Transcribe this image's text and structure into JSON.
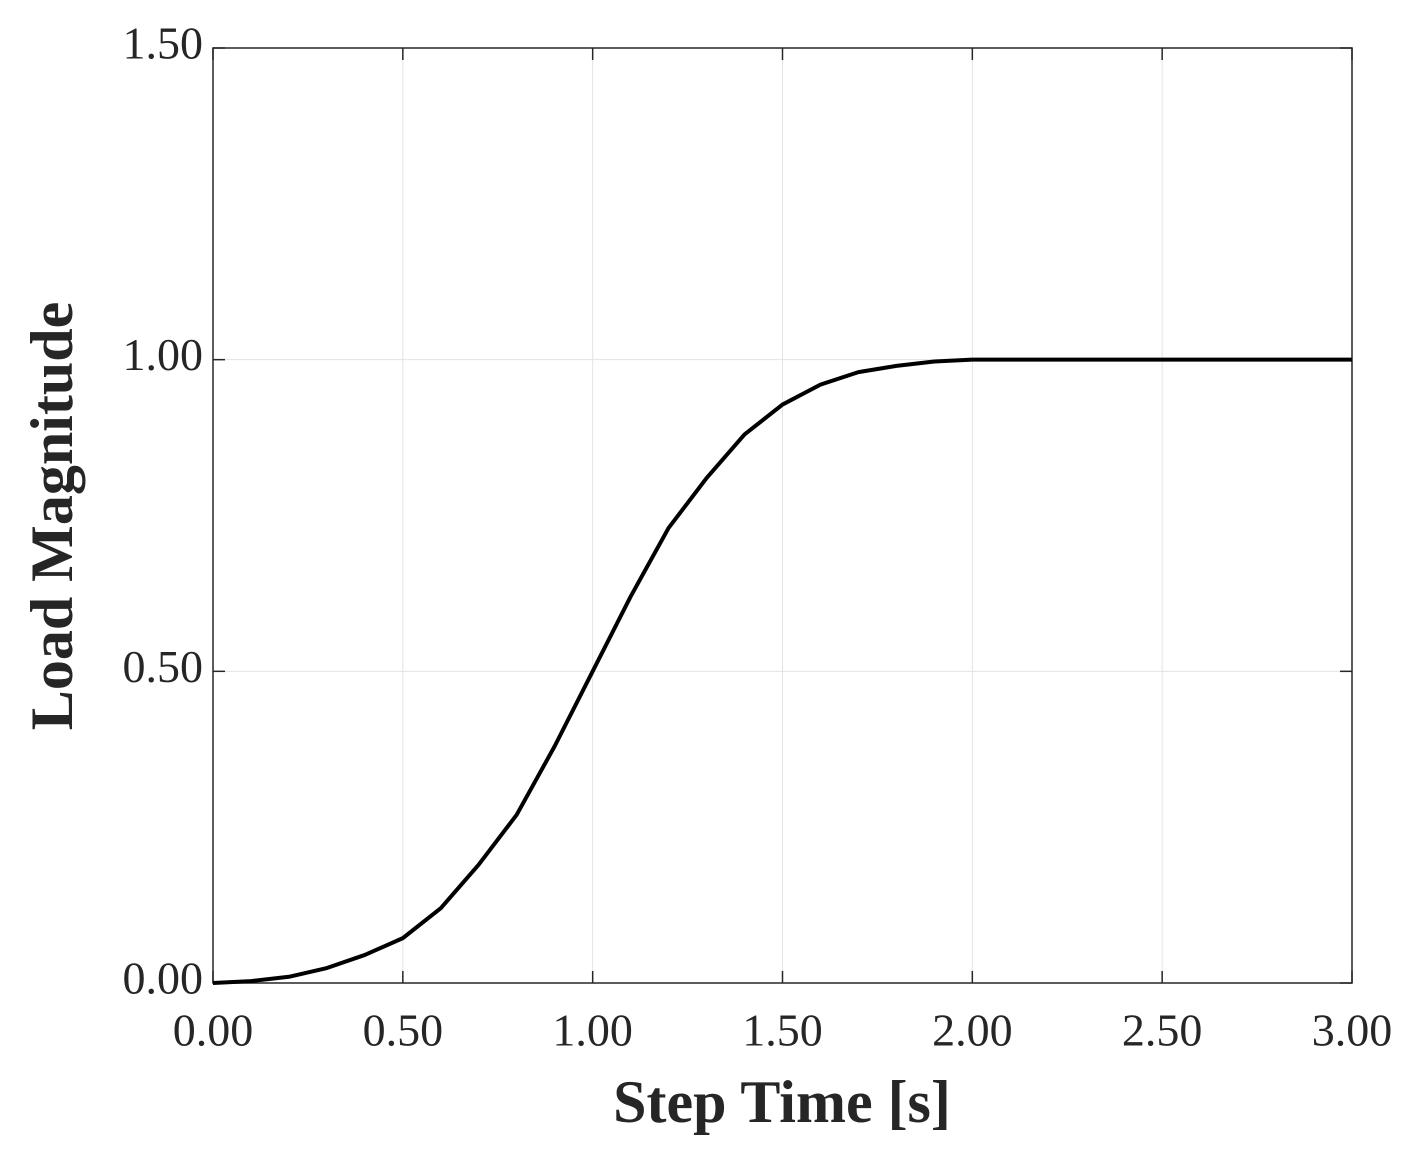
{
  "chart_data": {
    "type": "line",
    "xlabel": "Step Time [s]",
    "ylabel": "Load Magnitude",
    "x": [
      0,
      0.1,
      0.2,
      0.3,
      0.4,
      0.5,
      0.6,
      0.7,
      0.8,
      0.9,
      1.0,
      1.1,
      1.2,
      1.3,
      1.4,
      1.5,
      1.6,
      1.7,
      1.8,
      1.9,
      2.0,
      2.5,
      3.0
    ],
    "values": [
      0,
      0.003,
      0.01,
      0.024,
      0.045,
      0.072,
      0.12,
      0.19,
      0.27,
      0.38,
      0.5,
      0.62,
      0.73,
      0.81,
      0.88,
      0.928,
      0.96,
      0.98,
      0.99,
      0.997,
      1.0,
      1.0,
      1.0
    ],
    "color": "#000000",
    "xlim": [
      0,
      3
    ],
    "ylim": [
      0,
      1.5
    ],
    "xticks": [
      {
        "value": 0,
        "label": "0.00"
      },
      {
        "value": 0.5,
        "label": "0.50"
      },
      {
        "value": 1,
        "label": "1.00"
      },
      {
        "value": 1.5,
        "label": "1.50"
      },
      {
        "value": 2,
        "label": "2.00"
      },
      {
        "value": 2.5,
        "label": "2.50"
      },
      {
        "value": 3,
        "label": "3.00"
      }
    ],
    "yticks": [
      {
        "value": 0,
        "label": "0.00"
      },
      {
        "value": 0.5,
        "label": "0.50"
      },
      {
        "value": 1,
        "label": "1.00"
      },
      {
        "value": 1.5,
        "label": "1.50"
      }
    ],
    "grid": true
  }
}
